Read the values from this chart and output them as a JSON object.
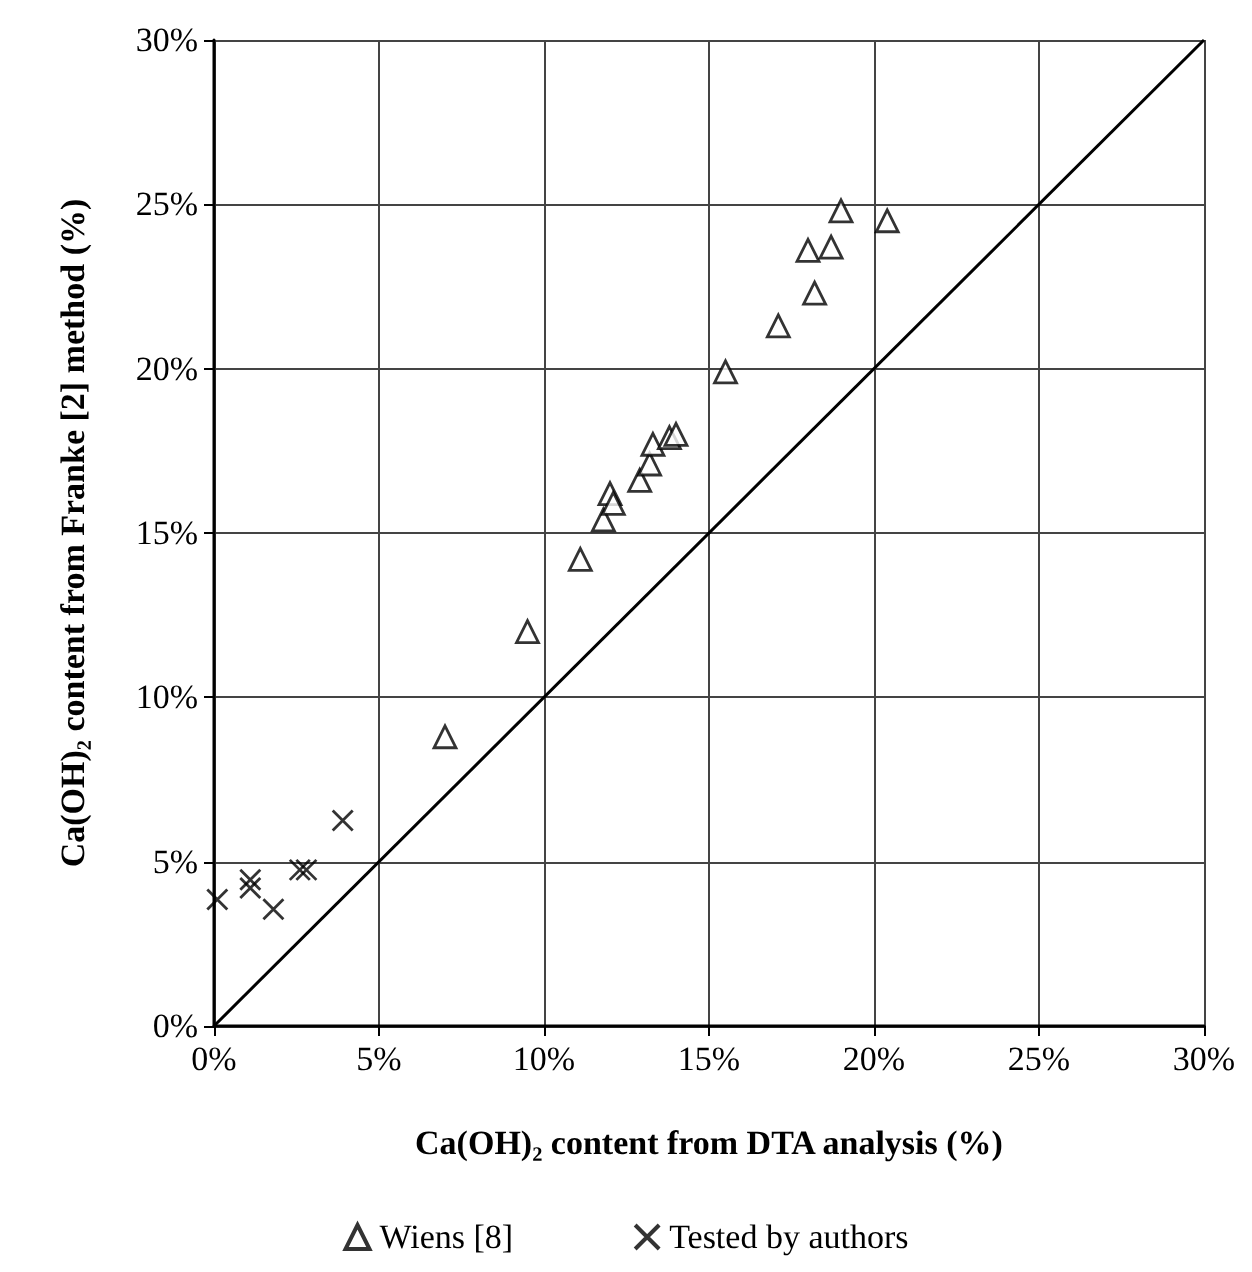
{
  "chart_data": {
    "type": "scatter",
    "xlabel": "Ca(OH)₂ content from DTA analysis (%)",
    "ylabel": "Ca(OH)₂ content from Franke [2] method (%)",
    "xlim": [
      0,
      30
    ],
    "ylim": [
      0,
      30
    ],
    "xticks": [
      {
        "value": 0,
        "label": "0%"
      },
      {
        "value": 5,
        "label": "5%"
      },
      {
        "value": 10,
        "label": "10%"
      },
      {
        "value": 15,
        "label": "15%"
      },
      {
        "value": 20,
        "label": "20%"
      },
      {
        "value": 25,
        "label": "25%"
      },
      {
        "value": 30,
        "label": "30%"
      }
    ],
    "yticks": [
      {
        "value": 0,
        "label": "0%"
      },
      {
        "value": 5,
        "label": "5%"
      },
      {
        "value": 10,
        "label": "10%"
      },
      {
        "value": 15,
        "label": "15%"
      },
      {
        "value": 20,
        "label": "20%"
      },
      {
        "value": 25,
        "label": "25%"
      },
      {
        "value": 30,
        "label": "30%"
      }
    ],
    "grid": true,
    "legend": "bottom",
    "series": [
      {
        "name": "Wiens [8]",
        "color": "#000000",
        "marker": "triangle",
        "x": [
          7.0,
          9.5,
          11.1,
          11.8,
          12.0,
          12.1,
          12.9,
          13.2,
          13.3,
          13.8,
          14.0,
          15.5,
          17.1,
          18.2,
          18.0,
          18.7,
          19.0,
          20.4
        ],
        "values": [
          8.8,
          12.0,
          14.2,
          15.4,
          16.2,
          15.9,
          16.6,
          17.1,
          17.7,
          17.9,
          18.0,
          19.9,
          21.3,
          22.3,
          23.6,
          23.7,
          24.8,
          24.5
        ]
      },
      {
        "name": "Tested by authors",
        "color": "#000000",
        "marker": "cross",
        "x": [
          0.1,
          1.1,
          1.1,
          1.8,
          2.6,
          2.8,
          3.9
        ],
        "values": [
          3.85,
          4.45,
          4.2,
          3.55,
          4.75,
          4.75,
          6.25
        ]
      },
      {
        "type": "line",
        "color": "#000000",
        "marker": "none",
        "x": [
          0,
          30
        ],
        "values": [
          0,
          30
        ]
      }
    ]
  }
}
